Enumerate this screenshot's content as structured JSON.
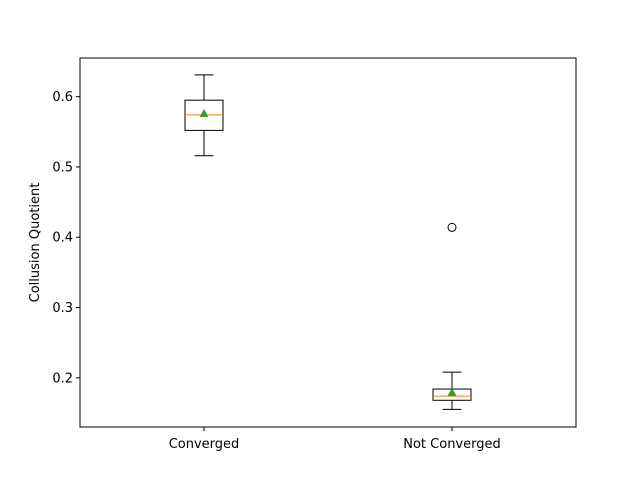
{
  "chart_data": {
    "type": "box",
    "title": "",
    "xlabel": "",
    "ylabel": "Collusion Quotient",
    "ylim": [
      0.13,
      0.655
    ],
    "yticks": [
      0.2,
      0.3,
      0.4,
      0.5,
      0.6
    ],
    "ytick_labels": [
      "0.2",
      "0.3",
      "0.4",
      "0.5",
      "0.6"
    ],
    "categories": [
      "Converged",
      "Not Converged"
    ],
    "boxes": [
      {
        "label": "Converged",
        "whisker_low": 0.516,
        "q1": 0.552,
        "median": 0.574,
        "mean": 0.576,
        "q3": 0.595,
        "whisker_high": 0.631,
        "outliers": []
      },
      {
        "label": "Not Converged",
        "whisker_low": 0.155,
        "q1": 0.168,
        "median": 0.174,
        "mean": 0.179,
        "q3": 0.184,
        "whisker_high": 0.208,
        "outliers": [
          0.414
        ]
      }
    ],
    "grid": false,
    "colors": {
      "box": "#000000",
      "median": "#ff7f0e",
      "mean_marker": "#2ca02c",
      "outlier": "#000000"
    }
  }
}
